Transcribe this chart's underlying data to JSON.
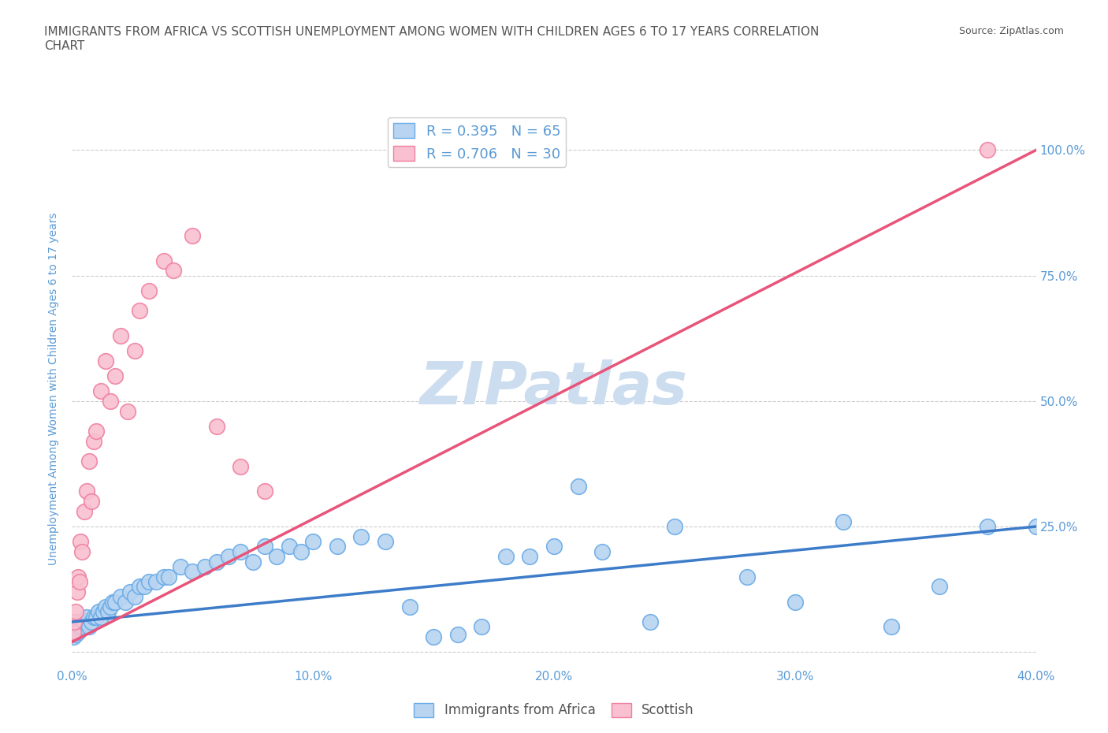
{
  "title_line1": "IMMIGRANTS FROM AFRICA VS SCOTTISH UNEMPLOYMENT AMONG WOMEN WITH CHILDREN AGES 6 TO 17 YEARS CORRELATION",
  "title_line2": "CHART",
  "source": "Source: ZipAtlas.com",
  "ylabel": "Unemployment Among Women with Children Ages 6 to 17 years",
  "watermark": "ZIPatlas",
  "legend_label_blue": "R = 0.395   N = 65",
  "legend_label_pink": "R = 0.706   N = 30",
  "legend_bottom_blue": "Immigrants from Africa",
  "legend_bottom_pink": "Scottish",
  "blue_scatter_x": [
    0.05,
    0.1,
    0.15,
    0.2,
    0.25,
    0.3,
    0.35,
    0.4,
    0.5,
    0.6,
    0.7,
    0.8,
    0.9,
    1.0,
    1.1,
    1.2,
    1.3,
    1.4,
    1.5,
    1.6,
    1.7,
    1.8,
    2.0,
    2.2,
    2.4,
    2.6,
    2.8,
    3.0,
    3.2,
    3.5,
    3.8,
    4.0,
    4.5,
    5.0,
    5.5,
    6.0,
    6.5,
    7.0,
    7.5,
    8.0,
    8.5,
    9.0,
    9.5,
    10.0,
    11.0,
    12.0,
    13.0,
    14.0,
    15.0,
    16.0,
    17.0,
    18.0,
    19.0,
    20.0,
    21.0,
    22.0,
    24.0,
    25.0,
    28.0,
    30.0,
    32.0,
    34.0,
    36.0,
    38.0,
    40.0
  ],
  "blue_scatter_y": [
    3.0,
    4.0,
    3.5,
    5.0,
    4.0,
    5.0,
    6.0,
    5.0,
    6.0,
    7.0,
    5.0,
    6.0,
    7.0,
    7.0,
    8.0,
    7.0,
    8.0,
    9.0,
    8.0,
    9.0,
    10.0,
    10.0,
    11.0,
    10.0,
    12.0,
    11.0,
    13.0,
    13.0,
    14.0,
    14.0,
    15.0,
    15.0,
    17.0,
    16.0,
    17.0,
    18.0,
    19.0,
    20.0,
    18.0,
    21.0,
    19.0,
    21.0,
    20.0,
    22.0,
    21.0,
    23.0,
    22.0,
    9.0,
    3.0,
    3.5,
    5.0,
    19.0,
    19.0,
    21.0,
    33.0,
    20.0,
    6.0,
    25.0,
    15.0,
    10.0,
    26.0,
    5.0,
    13.0,
    25.0,
    25.0
  ],
  "pink_scatter_x": [
    0.05,
    0.1,
    0.15,
    0.2,
    0.25,
    0.3,
    0.35,
    0.4,
    0.5,
    0.6,
    0.7,
    0.8,
    0.9,
    1.0,
    1.2,
    1.4,
    1.6,
    1.8,
    2.0,
    2.3,
    2.6,
    2.8,
    3.2,
    3.8,
    4.2,
    5.0,
    6.0,
    7.0,
    8.0,
    38.0
  ],
  "pink_scatter_y": [
    4.0,
    6.0,
    8.0,
    12.0,
    15.0,
    14.0,
    22.0,
    20.0,
    28.0,
    32.0,
    38.0,
    30.0,
    42.0,
    44.0,
    52.0,
    58.0,
    50.0,
    55.0,
    63.0,
    48.0,
    60.0,
    68.0,
    72.0,
    78.0,
    76.0,
    83.0,
    45.0,
    37.0,
    32.0,
    100.0
  ],
  "blue_line_x": [
    0.0,
    40.0
  ],
  "blue_line_y": [
    6.0,
    25.0
  ],
  "pink_line_x": [
    0.0,
    40.0
  ],
  "pink_line_y": [
    2.0,
    100.0
  ],
  "xlim": [
    0.0,
    40.0
  ],
  "ylim": [
    -3.0,
    108.0
  ],
  "yticks": [
    0,
    25,
    50,
    75,
    100
  ],
  "xticks": [
    0,
    10,
    20,
    30,
    40
  ],
  "xtick_labels": [
    "0.0%",
    "10.0%",
    "20.0%",
    "30.0%",
    "40.0%"
  ],
  "right_ytick_labels": [
    "",
    "25.0%",
    "50.0%",
    "75.0%",
    "100.0%"
  ],
  "blue_line_color": "#3d7cc9",
  "pink_line_color": "#e8547a",
  "blue_scatter_face": "#b8d4f0",
  "blue_scatter_edge": "#6aabe8",
  "pink_scatter_face": "#f8c0d0",
  "pink_scatter_edge": "#f080a0",
  "title_color": "#555555",
  "axis_color": "#5b9bd5",
  "grid_color": "#cccccc",
  "watermark_color": "#cdddf0",
  "background_color": "#ffffff",
  "legend_edge_color": "#cccccc"
}
